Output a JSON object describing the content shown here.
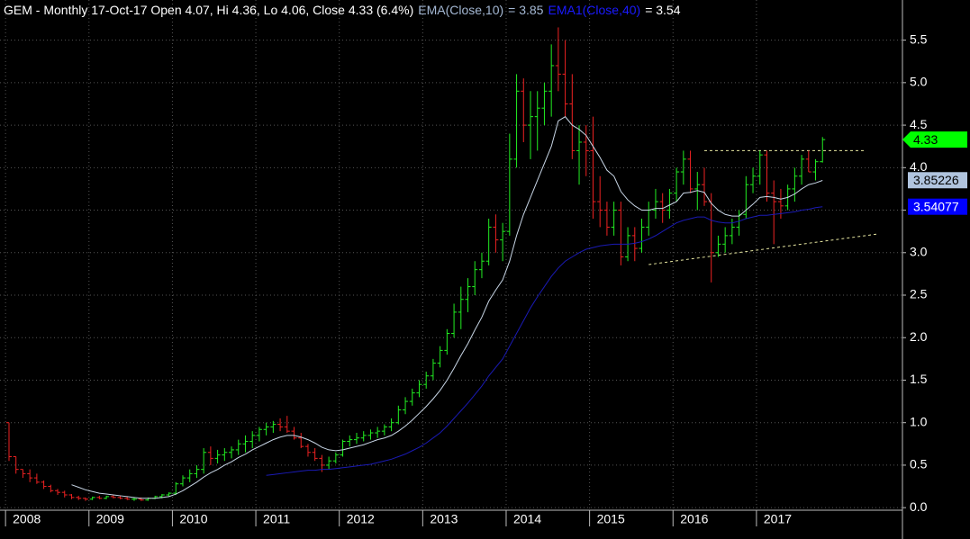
{
  "chart_data": {
    "type": "ohlc",
    "title": "GEM - Monthly 17-Oct-17 Open 4.07, Hi 4.36, Lo 4.06, Close 4.33 (6.4%)",
    "categories": [
      "2008",
      null,
      null,
      null,
      null,
      null,
      null,
      null,
      null,
      null,
      null,
      null,
      "2009",
      null,
      null,
      null,
      null,
      null,
      null,
      null,
      null,
      null,
      null,
      null,
      "2010",
      null,
      null,
      null,
      null,
      null,
      null,
      null,
      null,
      null,
      null,
      null,
      "2011",
      null,
      null,
      null,
      null,
      null,
      null,
      null,
      null,
      null,
      null,
      null,
      "2012",
      null,
      null,
      null,
      null,
      null,
      null,
      null,
      null,
      null,
      null,
      null,
      "2013",
      null,
      null,
      null,
      null,
      null,
      null,
      null,
      null,
      null,
      null,
      null,
      "2014",
      null,
      null,
      null,
      null,
      null,
      null,
      null,
      null,
      null,
      null,
      null,
      "2015",
      null,
      null,
      null,
      null,
      null,
      null,
      null,
      null,
      null,
      null,
      null,
      "2016",
      null,
      null,
      null,
      null,
      null,
      null,
      null,
      null,
      null,
      null,
      null,
      "2017",
      null,
      null,
      null,
      null,
      null,
      null,
      null,
      null,
      null
    ],
    "open": [
      1.0,
      0.6,
      0.45,
      0.4,
      0.35,
      0.3,
      0.25,
      0.2,
      0.18,
      0.15,
      0.12,
      0.11,
      0.1,
      0.12,
      0.11,
      0.13,
      0.12,
      0.11,
      0.1,
      0.1,
      0.09,
      0.11,
      0.13,
      0.15,
      0.17,
      0.28,
      0.35,
      0.4,
      0.45,
      0.65,
      0.58,
      0.62,
      0.65,
      0.68,
      0.75,
      0.78,
      0.85,
      0.92,
      0.95,
      0.98,
      0.95,
      0.9,
      0.82,
      0.72,
      0.65,
      0.58,
      0.5,
      0.55,
      0.62,
      0.78,
      0.8,
      0.82,
      0.85,
      0.88,
      0.9,
      0.95,
      1.0,
      1.15,
      1.25,
      1.35,
      1.45,
      1.55,
      1.7,
      1.85,
      2.05,
      2.3,
      2.45,
      2.6,
      2.8,
      2.9,
      3.3,
      3.15,
      3.25,
      4.1,
      4.9,
      4.5,
      4.6,
      4.7,
      4.9,
      5.2,
      5.1,
      4.75,
      4.2,
      4.3,
      4.2,
      3.6,
      3.5,
      3.3,
      3.5,
      2.95,
      3.2,
      3.05,
      3.3,
      3.5,
      3.6,
      3.5,
      3.7,
      3.95,
      4.1,
      3.75,
      3.8,
      3.6,
      3.0,
      3.1,
      3.2,
      3.3,
      3.45,
      3.8,
      3.9,
      4.15,
      3.7,
      3.6,
      3.55,
      3.75,
      3.9,
      4.1,
      3.95,
      4.07
    ],
    "high": [
      1.0,
      0.6,
      0.45,
      0.45,
      0.4,
      0.32,
      0.27,
      0.22,
      0.2,
      0.16,
      0.14,
      0.12,
      0.13,
      0.14,
      0.14,
      0.15,
      0.14,
      0.13,
      0.12,
      0.12,
      0.12,
      0.14,
      0.16,
      0.18,
      0.3,
      0.38,
      0.45,
      0.5,
      0.7,
      0.72,
      0.68,
      0.7,
      0.72,
      0.8,
      0.85,
      0.9,
      0.95,
      1.0,
      1.02,
      1.05,
      1.08,
      0.95,
      0.88,
      0.75,
      0.7,
      0.62,
      0.6,
      0.65,
      0.8,
      0.85,
      0.88,
      0.9,
      0.92,
      0.95,
      0.98,
      1.05,
      1.2,
      1.3,
      1.4,
      1.5,
      1.6,
      1.75,
      1.9,
      2.1,
      2.4,
      2.6,
      2.7,
      2.9,
      3.0,
      3.4,
      3.45,
      3.35,
      4.4,
      5.1,
      5.05,
      4.9,
      4.9,
      5.0,
      5.45,
      5.65,
      5.5,
      5.1,
      4.5,
      4.5,
      4.6,
      3.9,
      3.6,
      3.6,
      3.6,
      3.3,
      3.3,
      3.4,
      3.6,
      3.75,
      3.7,
      3.75,
      4.0,
      4.2,
      4.2,
      3.95,
      4.0,
      3.7,
      3.2,
      3.3,
      3.4,
      3.5,
      3.9,
      4.0,
      4.2,
      4.2,
      3.85,
      3.75,
      3.8,
      4.0,
      4.15,
      4.2,
      4.1,
      4.36
    ],
    "low": [
      0.55,
      0.4,
      0.35,
      0.3,
      0.28,
      0.22,
      0.18,
      0.15,
      0.12,
      0.1,
      0.09,
      0.08,
      0.09,
      0.1,
      0.1,
      0.11,
      0.1,
      0.09,
      0.08,
      0.08,
      0.08,
      0.1,
      0.11,
      0.13,
      0.15,
      0.25,
      0.3,
      0.35,
      0.4,
      0.5,
      0.52,
      0.55,
      0.58,
      0.62,
      0.65,
      0.7,
      0.78,
      0.85,
      0.88,
      0.9,
      0.88,
      0.8,
      0.7,
      0.6,
      0.55,
      0.42,
      0.45,
      0.52,
      0.6,
      0.72,
      0.75,
      0.78,
      0.8,
      0.82,
      0.85,
      0.9,
      0.98,
      1.1,
      1.2,
      1.3,
      1.4,
      1.5,
      1.65,
      1.8,
      2.0,
      2.1,
      2.3,
      2.5,
      2.7,
      2.85,
      3.0,
      2.9,
      3.2,
      4.0,
      4.3,
      4.1,
      4.2,
      4.5,
      4.6,
      4.9,
      4.6,
      4.1,
      3.8,
      3.9,
      3.4,
      3.3,
      3.2,
      3.2,
      2.85,
      2.9,
      2.9,
      3.0,
      3.2,
      3.4,
      3.35,
      3.4,
      3.6,
      3.8,
      3.7,
      3.5,
      3.55,
      2.65,
      2.95,
      3.0,
      3.1,
      3.2,
      3.4,
      3.7,
      3.8,
      3.6,
      3.1,
      3.4,
      3.5,
      3.6,
      3.8,
      3.95,
      3.85,
      4.06
    ],
    "close": [
      0.6,
      0.45,
      0.4,
      0.35,
      0.3,
      0.25,
      0.2,
      0.18,
      0.15,
      0.12,
      0.11,
      0.1,
      0.12,
      0.11,
      0.13,
      0.12,
      0.11,
      0.1,
      0.1,
      0.09,
      0.11,
      0.13,
      0.15,
      0.17,
      0.28,
      0.35,
      0.4,
      0.45,
      0.65,
      0.58,
      0.62,
      0.65,
      0.68,
      0.75,
      0.78,
      0.85,
      0.92,
      0.95,
      0.98,
      0.95,
      0.9,
      0.82,
      0.72,
      0.65,
      0.58,
      0.5,
      0.55,
      0.62,
      0.78,
      0.8,
      0.82,
      0.85,
      0.88,
      0.9,
      0.95,
      1.0,
      1.15,
      1.25,
      1.35,
      1.45,
      1.55,
      1.7,
      1.85,
      2.05,
      2.3,
      2.45,
      2.6,
      2.8,
      2.9,
      3.3,
      3.15,
      3.25,
      4.1,
      4.9,
      4.5,
      4.6,
      4.7,
      4.9,
      5.2,
      5.1,
      4.75,
      4.2,
      4.3,
      4.2,
      3.6,
      3.5,
      3.3,
      3.5,
      2.95,
      3.2,
      3.05,
      3.3,
      3.5,
      3.6,
      3.5,
      3.7,
      3.95,
      4.1,
      3.75,
      3.8,
      3.6,
      3.0,
      3.1,
      3.2,
      3.3,
      3.45,
      3.8,
      3.9,
      4.15,
      3.7,
      3.6,
      3.55,
      3.75,
      3.9,
      4.1,
      3.95,
      4.07,
      4.33
    ],
    "up_color": "#22ee22",
    "down_color": "#ee2222",
    "series": [
      {
        "name": "EMA(Close,10)",
        "color": "#c8d6e6",
        "value_label": "= 3.85",
        "value_label_color": "#a4b8d4",
        "values": [
          null,
          null,
          null,
          null,
          null,
          null,
          null,
          null,
          null,
          0.27,
          0.24,
          0.21,
          0.19,
          0.17,
          0.16,
          0.15,
          0.14,
          0.13,
          0.12,
          0.11,
          0.11,
          0.11,
          0.12,
          0.13,
          0.16,
          0.2,
          0.25,
          0.3,
          0.36,
          0.41,
          0.45,
          0.5,
          0.54,
          0.59,
          0.63,
          0.68,
          0.72,
          0.76,
          0.8,
          0.83,
          0.85,
          0.85,
          0.83,
          0.8,
          0.76,
          0.71,
          0.68,
          0.67,
          0.68,
          0.7,
          0.72,
          0.74,
          0.77,
          0.8,
          0.82,
          0.85,
          0.9,
          0.96,
          1.03,
          1.11,
          1.19,
          1.28,
          1.38,
          1.5,
          1.64,
          1.79,
          1.93,
          2.09,
          2.24,
          2.43,
          2.56,
          2.68,
          2.9,
          3.2,
          3.45,
          3.65,
          3.85,
          4.05,
          4.25,
          4.55,
          4.6,
          4.5,
          4.45,
          4.38,
          4.25,
          4.12,
          3.97,
          3.9,
          3.72,
          3.62,
          3.55,
          3.5,
          3.5,
          3.52,
          3.52,
          3.56,
          3.6,
          3.7,
          3.71,
          3.73,
          3.71,
          3.58,
          3.5,
          3.45,
          3.43,
          3.43,
          3.5,
          3.57,
          3.65,
          3.66,
          3.65,
          3.63,
          3.65,
          3.69,
          3.75,
          3.8,
          3.82,
          3.85
        ]
      },
      {
        "name": "EMA1(Close,40)",
        "color": "#1a1ab4",
        "value_label": "= 3.54",
        "value_label_color": "#ffffff",
        "values": [
          null,
          null,
          null,
          null,
          null,
          null,
          null,
          null,
          null,
          null,
          null,
          null,
          null,
          null,
          null,
          null,
          null,
          null,
          null,
          null,
          null,
          null,
          null,
          null,
          null,
          null,
          null,
          null,
          null,
          null,
          null,
          null,
          null,
          null,
          null,
          null,
          null,
          0.38,
          0.39,
          0.4,
          0.41,
          0.42,
          0.43,
          0.44,
          0.44,
          0.45,
          0.45,
          0.46,
          0.47,
          0.48,
          0.49,
          0.5,
          0.51,
          0.53,
          0.55,
          0.57,
          0.6,
          0.63,
          0.67,
          0.71,
          0.76,
          0.82,
          0.88,
          0.96,
          1.05,
          1.14,
          1.23,
          1.33,
          1.43,
          1.55,
          1.65,
          1.75,
          1.9,
          2.05,
          2.2,
          2.35,
          2.48,
          2.6,
          2.72,
          2.82,
          2.9,
          2.95,
          3.0,
          3.04,
          3.06,
          3.08,
          3.09,
          3.1,
          3.1,
          3.1,
          3.11,
          3.13,
          3.16,
          3.2,
          3.25,
          3.3,
          3.35,
          3.38,
          3.4,
          3.42,
          3.42,
          3.38,
          3.36,
          3.35,
          3.35,
          3.37,
          3.4,
          3.42,
          3.44,
          3.44,
          3.45,
          3.46,
          3.47,
          3.48,
          3.5,
          3.51,
          3.53,
          3.54
        ]
      }
    ],
    "trendlines": [
      {
        "x": [
          100,
          123
        ],
        "y": [
          4.2,
          4.2
        ],
        "color": "#e6e6a0"
      },
      {
        "x": [
          92,
          125
        ],
        "y": [
          2.86,
          3.22
        ],
        "color": "#e6e6a0"
      }
    ],
    "price_tags": [
      {
        "value": 4.33,
        "color": "#00ff00",
        "text_color": "#000000",
        "shape": "arrow"
      },
      {
        "value": 3.85226,
        "color": "#b0c4de",
        "text_color": "#000000",
        "shape": "box"
      },
      {
        "value": 3.54077,
        "color": "#0000ff",
        "text_color": "#ffffff",
        "shape": "box"
      }
    ],
    "ylim": [
      -0.03,
      5.93
    ],
    "yticks": [
      {
        "value": 0,
        "label": "0.0"
      },
      0.5,
      {
        "value": 1,
        "label": "1.0"
      },
      1.5,
      {
        "value": 2,
        "label": "2.0"
      },
      2.5,
      {
        "value": 3,
        "label": "3.0"
      },
      3.5,
      {
        "value": 4,
        "label": "4.0"
      },
      4.5,
      {
        "value": 5,
        "label": "5.0"
      },
      5.5
    ],
    "grid": true
  }
}
